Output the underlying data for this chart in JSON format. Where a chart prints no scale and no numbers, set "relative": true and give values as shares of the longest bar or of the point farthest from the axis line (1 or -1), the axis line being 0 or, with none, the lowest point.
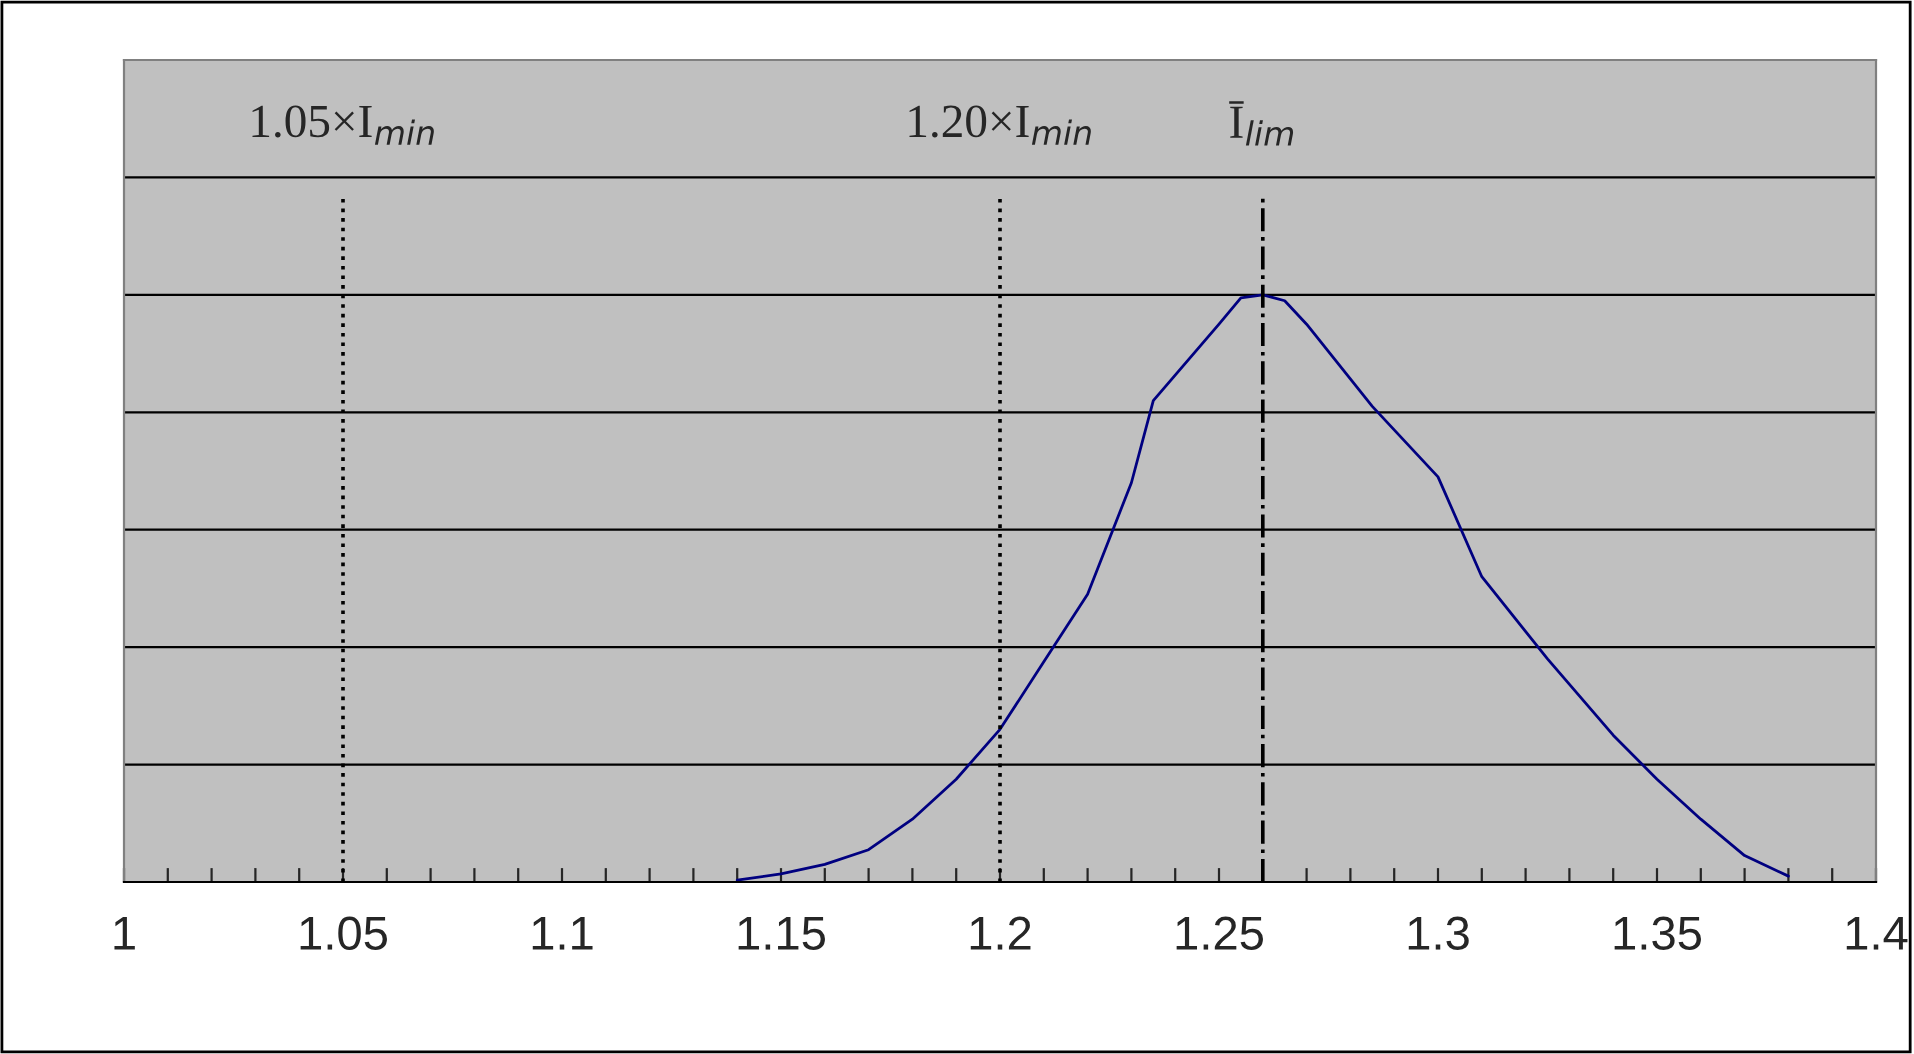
{
  "chart_data": {
    "type": "line",
    "relative": true,
    "grid": "y",
    "tick_labels": "x",
    "marker": "none",
    "line_style": "solid",
    "xlim": [
      1,
      1.4
    ],
    "xticks": [
      1,
      {
        "value": 1.01,
        "label": null
      },
      {
        "value": 1.02,
        "label": null
      },
      {
        "value": 1.03,
        "label": null
      },
      {
        "value": 1.04,
        "label": null
      },
      1.05,
      {
        "value": 1.06,
        "label": null
      },
      {
        "value": 1.07,
        "label": null
      },
      {
        "value": 1.08,
        "label": null
      },
      {
        "value": 1.09,
        "label": null
      },
      1.1,
      {
        "value": 1.11,
        "label": null
      },
      {
        "value": 1.12,
        "label": null
      },
      {
        "value": 1.13,
        "label": null
      },
      {
        "value": 1.14,
        "label": null
      },
      1.15,
      {
        "value": 1.16,
        "label": null
      },
      {
        "value": 1.17,
        "label": null
      },
      {
        "value": 1.18,
        "label": null
      },
      {
        "value": 1.19,
        "label": null
      },
      1.2,
      {
        "value": 1.21,
        "label": null
      },
      {
        "value": 1.22,
        "label": null
      },
      {
        "value": 1.23,
        "label": null
      },
      {
        "value": 1.24,
        "label": null
      },
      1.25,
      {
        "value": 1.26,
        "label": null
      },
      {
        "value": 1.27,
        "label": null
      },
      {
        "value": 1.28,
        "label": null
      },
      {
        "value": 1.29,
        "label": null
      },
      1.3,
      {
        "value": 1.31,
        "label": null
      },
      {
        "value": 1.32,
        "label": null
      },
      {
        "value": 1.33,
        "label": null
      },
      {
        "value": 1.34,
        "label": null
      },
      1.35,
      {
        "value": 1.36,
        "label": null
      },
      {
        "value": 1.37,
        "label": null
      },
      {
        "value": 1.38,
        "label": null
      },
      {
        "value": 1.39,
        "label": null
      },
      1.4
    ],
    "series": [
      {
        "color": "#000080",
        "x": [
          1.14,
          1.15,
          1.16,
          1.17,
          1.18,
          1.19,
          1.2,
          1.21,
          1.22,
          1.23,
          1.235,
          1.25,
          1.255,
          1.26,
          1.265,
          1.27,
          1.285,
          1.3,
          1.31,
          1.325,
          1.34,
          1.35,
          1.36,
          1.37,
          1.38
        ],
        "values": [
          0.003,
          0.014,
          0.03,
          0.055,
          0.107,
          0.175,
          0.26,
          0.375,
          0.49,
          0.68,
          0.82,
          0.95,
          0.995,
          1,
          0.99,
          0.95,
          0.81,
          0.69,
          0.52,
          0.38,
          0.25,
          0.175,
          0.107,
          0.045,
          0.01
        ]
      }
    ],
    "ref_lines": [
      {
        "axis": "x",
        "value": 1.05,
        "label": "1.05×I$_{min}$",
        "line_style": "dotted",
        "color": "#000000"
      },
      {
        "axis": "x",
        "value": 1.2,
        "label": "1.20×I$_{min}$",
        "line_style": "dotted",
        "color": "#000000"
      },
      {
        "axis": "x",
        "value": 1.26,
        "label": "Ī$_{lim}$",
        "line_style": "dashdot",
        "color": "#000000"
      }
    ]
  }
}
